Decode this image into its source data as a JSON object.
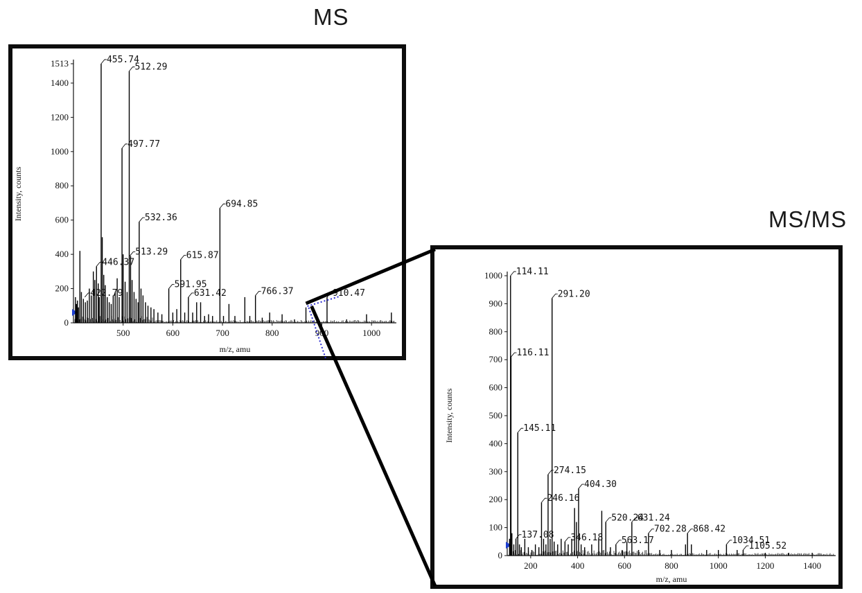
{
  "panels": {
    "ms_title": "MS",
    "msms_title": "MS/MS"
  },
  "chart_data": [
    {
      "id": "ms",
      "type": "bar",
      "title": "MS",
      "xlabel": "m/z, amu",
      "ylabel": "Intensity, counts",
      "xlim": [
        400,
        1050
      ],
      "ylim": [
        0,
        1513
      ],
      "xticks": [
        500,
        600,
        700,
        800,
        900,
        1000
      ],
      "yticks": [
        0,
        200,
        400,
        600,
        800,
        1000,
        1200,
        1400,
        1513
      ],
      "grid": false,
      "peaks": [
        {
          "x": 404,
          "y": 150
        },
        {
          "x": 406,
          "y": 110
        },
        {
          "x": 408,
          "y": 130
        },
        {
          "x": 410,
          "y": 90
        },
        {
          "x": 413,
          "y": 420
        },
        {
          "x": 416,
          "y": 180
        },
        {
          "x": 420,
          "y": 140
        },
        {
          "x": 424,
          "y": 120
        },
        {
          "x": 428,
          "y": 130
        },
        {
          "x": 432,
          "y": 200
        },
        {
          "x": 436,
          "y": 160
        },
        {
          "x": 440,
          "y": 300
        },
        {
          "x": 443,
          "y": 250
        },
        {
          "x": 446.37,
          "y": 330
        },
        {
          "x": 450,
          "y": 230
        },
        {
          "x": 452,
          "y": 150
        },
        {
          "x": 455.74,
          "y": 1513
        },
        {
          "x": 458,
          "y": 500
        },
        {
          "x": 461,
          "y": 280
        },
        {
          "x": 464,
          "y": 220
        },
        {
          "x": 468,
          "y": 150
        },
        {
          "x": 472,
          "y": 120
        },
        {
          "x": 476,
          "y": 110
        },
        {
          "x": 480,
          "y": 160
        },
        {
          "x": 484,
          "y": 180
        },
        {
          "x": 488,
          "y": 260
        },
        {
          "x": 492,
          "y": 150
        },
        {
          "x": 497.77,
          "y": 1020
        },
        {
          "x": 500,
          "y": 400
        },
        {
          "x": 504,
          "y": 240
        },
        {
          "x": 508,
          "y": 180
        },
        {
          "x": 512.29,
          "y": 1470
        },
        {
          "x": 515,
          "y": 390
        },
        {
          "x": 518,
          "y": 250
        },
        {
          "x": 522,
          "y": 180
        },
        {
          "x": 526,
          "y": 140
        },
        {
          "x": 530,
          "y": 120
        },
        {
          "x": 532.36,
          "y": 590
        },
        {
          "x": 536,
          "y": 200
        },
        {
          "x": 540,
          "y": 160
        },
        {
          "x": 545,
          "y": 120
        },
        {
          "x": 550,
          "y": 100
        },
        {
          "x": 556,
          "y": 90
        },
        {
          "x": 562,
          "y": 80
        },
        {
          "x": 570,
          "y": 60
        },
        {
          "x": 578,
          "y": 50
        },
        {
          "x": 591.95,
          "y": 200
        },
        {
          "x": 600,
          "y": 60
        },
        {
          "x": 608,
          "y": 80
        },
        {
          "x": 615.87,
          "y": 370
        },
        {
          "x": 624,
          "y": 60
        },
        {
          "x": 631.42,
          "y": 150
        },
        {
          "x": 640,
          "y": 60
        },
        {
          "x": 648,
          "y": 120
        },
        {
          "x": 656,
          "y": 120
        },
        {
          "x": 664,
          "y": 40
        },
        {
          "x": 672,
          "y": 50
        },
        {
          "x": 680,
          "y": 40
        },
        {
          "x": 694.85,
          "y": 670
        },
        {
          "x": 702,
          "y": 40
        },
        {
          "x": 713,
          "y": 110
        },
        {
          "x": 725,
          "y": 40
        },
        {
          "x": 745,
          "y": 150
        },
        {
          "x": 755,
          "y": 40
        },
        {
          "x": 766.37,
          "y": 160
        },
        {
          "x": 780,
          "y": 30
        },
        {
          "x": 795,
          "y": 60
        },
        {
          "x": 820,
          "y": 50
        },
        {
          "x": 845,
          "y": 20
        },
        {
          "x": 868,
          "y": 90
        },
        {
          "x": 890,
          "y": 20
        },
        {
          "x": 910.47,
          "y": 150
        },
        {
          "x": 950,
          "y": 20
        },
        {
          "x": 990,
          "y": 50
        },
        {
          "x": 1040,
          "y": 60
        }
      ],
      "labels": [
        {
          "text": "455.74",
          "x": 455.74,
          "y": 1513
        },
        {
          "text": "512.29",
          "x": 512.29,
          "y": 1470
        },
        {
          "text": "497.77",
          "x": 497.77,
          "y": 1020
        },
        {
          "text": "532.36",
          "x": 532.36,
          "y": 590
        },
        {
          "text": "513.29",
          "x": 513.29,
          "y": 390
        },
        {
          "text": "446.37",
          "x": 446.37,
          "y": 330
        },
        {
          "text": "422.79",
          "x": 422.79,
          "y": 150
        },
        {
          "text": "694.85",
          "x": 694.85,
          "y": 670
        },
        {
          "text": "615.87",
          "x": 615.87,
          "y": 370
        },
        {
          "text": "591.95",
          "x": 591.95,
          "y": 200
        },
        {
          "text": "631.42",
          "x": 631.42,
          "y": 150
        },
        {
          "text": "766.37",
          "x": 766.37,
          "y": 160
        },
        {
          "text": "910.47",
          "x": 910.47,
          "y": 150
        }
      ]
    },
    {
      "id": "msms",
      "type": "bar",
      "title": "MS/MS",
      "xlabel": "m/z, amu",
      "ylabel": "Intensity, counts",
      "xlim": [
        100,
        1500
      ],
      "ylim": [
        0,
        1000
      ],
      "xticks": [
        200,
        400,
        600,
        800,
        1000,
        1200,
        1400
      ],
      "yticks": [
        0,
        100,
        200,
        300,
        400,
        500,
        600,
        700,
        800,
        900,
        1000
      ],
      "grid": false,
      "peaks": [
        {
          "x": 110,
          "y": 60
        },
        {
          "x": 114.11,
          "y": 1000
        },
        {
          "x": 116.11,
          "y": 710
        },
        {
          "x": 120,
          "y": 80
        },
        {
          "x": 128,
          "y": 40
        },
        {
          "x": 137.08,
          "y": 60
        },
        {
          "x": 145.11,
          "y": 440
        },
        {
          "x": 152,
          "y": 40
        },
        {
          "x": 160,
          "y": 30
        },
        {
          "x": 175,
          "y": 60
        },
        {
          "x": 190,
          "y": 30
        },
        {
          "x": 205,
          "y": 20
        },
        {
          "x": 220,
          "y": 40
        },
        {
          "x": 235,
          "y": 30
        },
        {
          "x": 246.16,
          "y": 190
        },
        {
          "x": 255,
          "y": 60
        },
        {
          "x": 265,
          "y": 40
        },
        {
          "x": 274.15,
          "y": 290
        },
        {
          "x": 283,
          "y": 60
        },
        {
          "x": 291.2,
          "y": 920
        },
        {
          "x": 300,
          "y": 50
        },
        {
          "x": 315,
          "y": 40
        },
        {
          "x": 330,
          "y": 60
        },
        {
          "x": 346.18,
          "y": 50
        },
        {
          "x": 360,
          "y": 40
        },
        {
          "x": 375,
          "y": 60
        },
        {
          "x": 387,
          "y": 170
        },
        {
          "x": 395,
          "y": 120
        },
        {
          "x": 404.3,
          "y": 240
        },
        {
          "x": 415,
          "y": 40
        },
        {
          "x": 430,
          "y": 30
        },
        {
          "x": 460,
          "y": 40
        },
        {
          "x": 490,
          "y": 60
        },
        {
          "x": 503,
          "y": 160
        },
        {
          "x": 520.24,
          "y": 120
        },
        {
          "x": 540,
          "y": 30
        },
        {
          "x": 563.17,
          "y": 40
        },
        {
          "x": 590,
          "y": 20
        },
        {
          "x": 610,
          "y": 50
        },
        {
          "x": 631.24,
          "y": 120
        },
        {
          "x": 660,
          "y": 20
        },
        {
          "x": 702.28,
          "y": 80
        },
        {
          "x": 750,
          "y": 20
        },
        {
          "x": 800,
          "y": 20
        },
        {
          "x": 860,
          "y": 40
        },
        {
          "x": 868.42,
          "y": 80
        },
        {
          "x": 885,
          "y": 40
        },
        {
          "x": 950,
          "y": 20
        },
        {
          "x": 1000,
          "y": 20
        },
        {
          "x": 1034.51,
          "y": 40
        },
        {
          "x": 1080,
          "y": 20
        },
        {
          "x": 1105.52,
          "y": 20
        },
        {
          "x": 1200,
          "y": 10
        },
        {
          "x": 1300,
          "y": 10
        },
        {
          "x": 1400,
          "y": 10
        }
      ],
      "labels": [
        {
          "text": "114.11",
          "x": 114.11,
          "y": 1000
        },
        {
          "text": "291.20",
          "x": 291.2,
          "y": 920
        },
        {
          "text": "116.11",
          "x": 116.11,
          "y": 710
        },
        {
          "text": "145.11",
          "x": 145.11,
          "y": 440
        },
        {
          "text": "274.15",
          "x": 274.15,
          "y": 290
        },
        {
          "text": "246.16",
          "x": 246.16,
          "y": 190
        },
        {
          "text": "404.30",
          "x": 404.3,
          "y": 240
        },
        {
          "text": "631.24",
          "x": 631.24,
          "y": 120
        },
        {
          "text": "520.24",
          "x": 520.24,
          "y": 120
        },
        {
          "text": "702.28",
          "x": 702.28,
          "y": 80
        },
        {
          "text": "868.42",
          "x": 868.42,
          "y": 80
        },
        {
          "text": "1034.51",
          "x": 1034.51,
          "y": 40
        },
        {
          "text": "1105.52",
          "x": 1105.52,
          "y": 20
        },
        {
          "text": "137.08",
          "x": 137.08,
          "y": 60
        },
        {
          "text": "346.18",
          "x": 346.18,
          "y": 50
        },
        {
          "text": "563.17",
          "x": 563.17,
          "y": 40
        }
      ]
    }
  ]
}
